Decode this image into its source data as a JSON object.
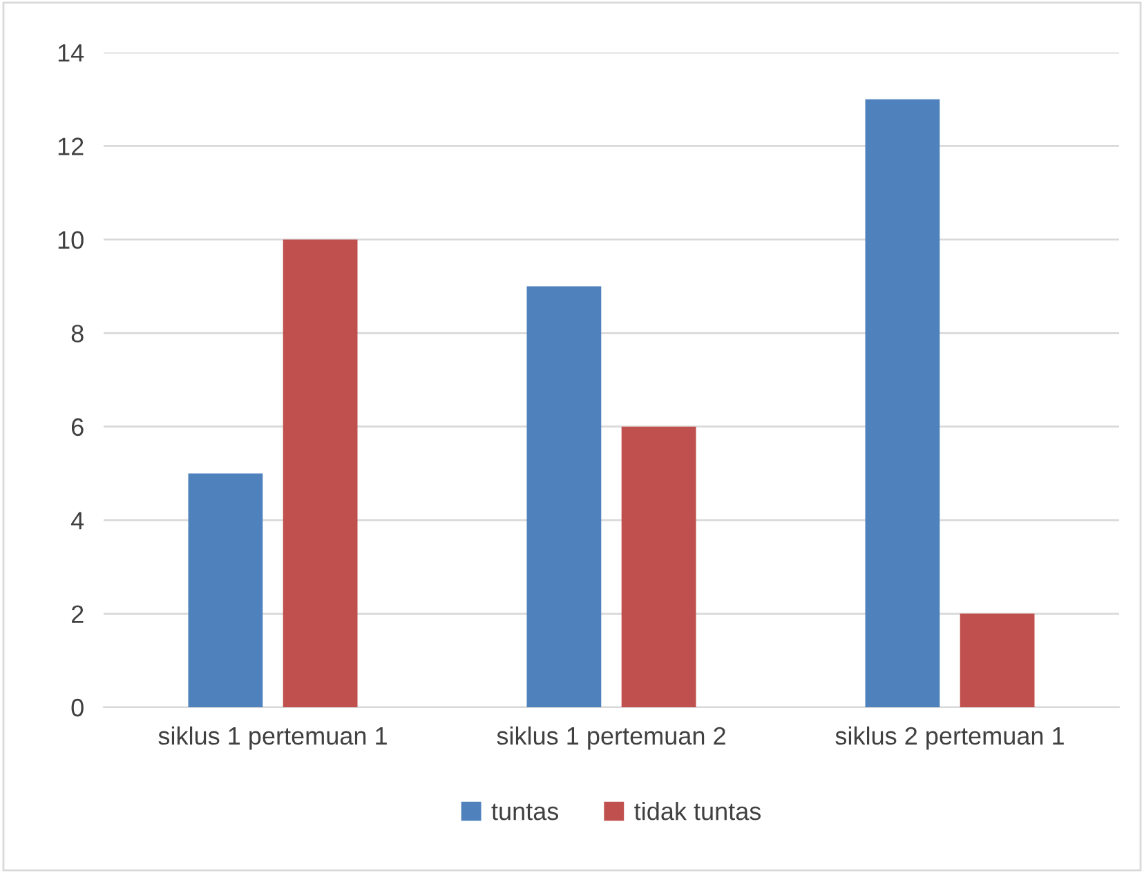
{
  "chart_data": {
    "type": "bar",
    "categories": [
      "siklus 1 pertemuan 1",
      "siklus 1 pertemuan 2",
      "siklus 2 pertemuan 1"
    ],
    "series": [
      {
        "name": "tuntas",
        "color": "#4f81bd",
        "values": [
          5,
          9,
          13
        ]
      },
      {
        "name": "tidak tuntas",
        "color": "#c0504d",
        "values": [
          10,
          6,
          2
        ]
      }
    ],
    "ylim": [
      0,
      14
    ],
    "yticks": [
      0,
      2,
      4,
      6,
      8,
      10,
      12,
      14
    ],
    "grid": "y",
    "legend": "bottom"
  }
}
